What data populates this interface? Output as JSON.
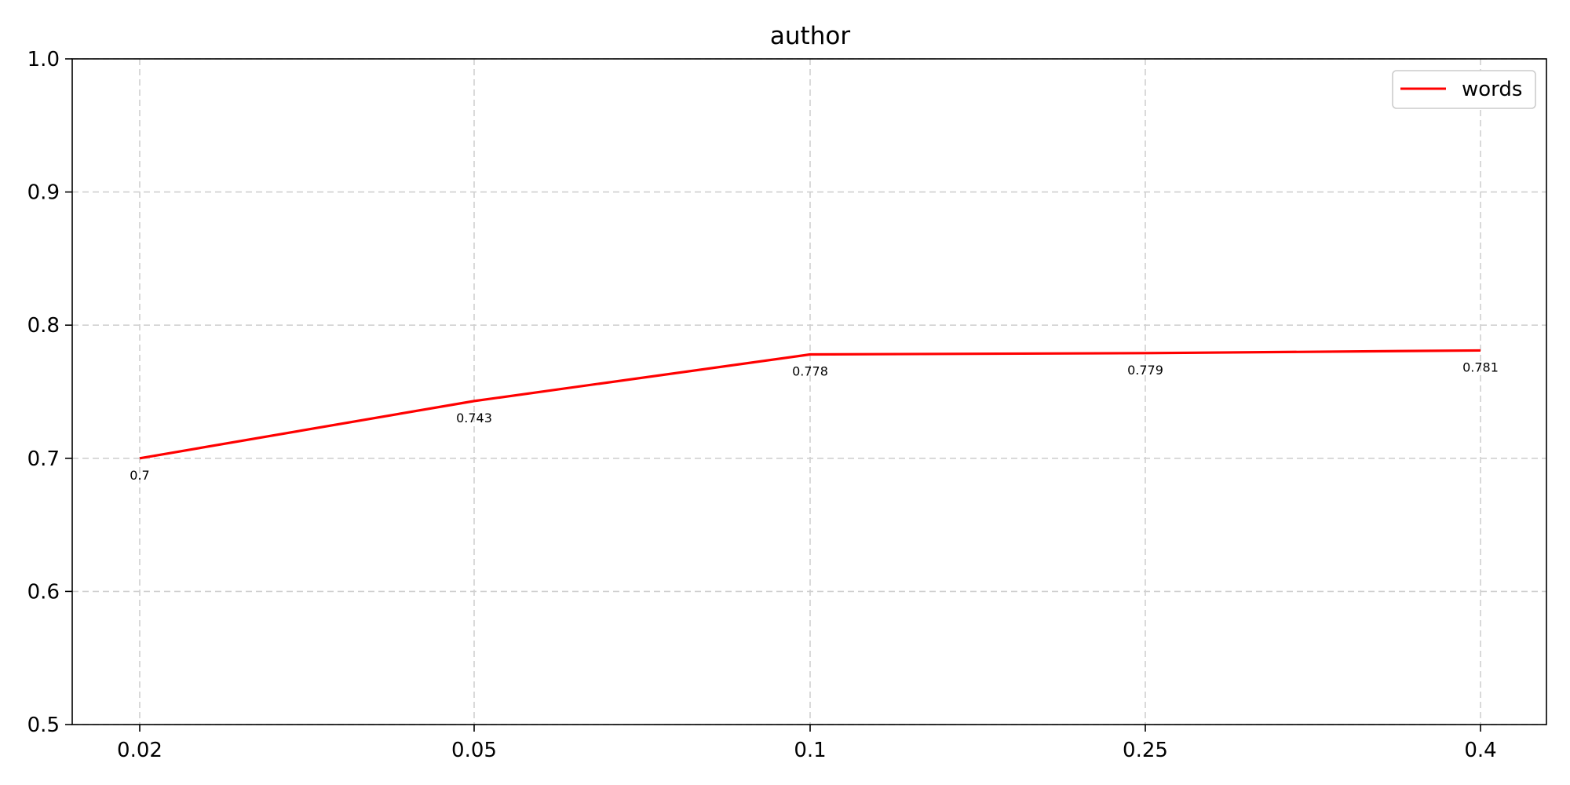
{
  "chart_data": {
    "type": "line",
    "title": "author",
    "xlabel": "",
    "ylabel": "",
    "categories": [
      "0.02",
      "0.05",
      "0.1",
      "0.25",
      "0.4"
    ],
    "series": [
      {
        "name": "words",
        "color": "#ff0000",
        "values": [
          0.7,
          0.743,
          0.778,
          0.779,
          0.781
        ],
        "labels": [
          "0.7",
          "0.743",
          "0.778",
          "0.779",
          "0.781"
        ]
      }
    ],
    "ylim": [
      0.5,
      1.0
    ],
    "yticks": [
      "0.5",
      "0.6",
      "0.7",
      "0.8",
      "0.9",
      "1.0"
    ],
    "grid": true,
    "legend_position": "top-right"
  }
}
